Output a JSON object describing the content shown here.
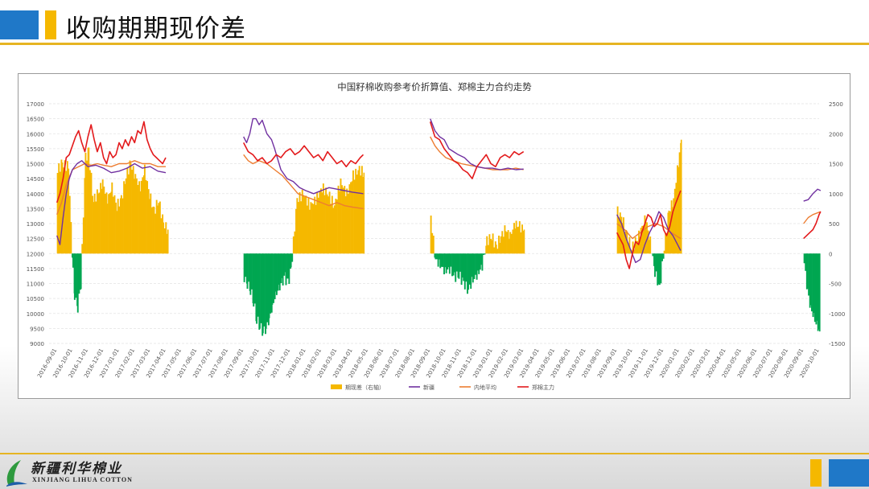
{
  "slide": {
    "title": "收购期期现价差",
    "company_cn": "新疆利华棉业",
    "company_en": "XINJIANG LIHUA COTTON",
    "colors": {
      "blue": "#1f78c8",
      "gold": "#f5b800",
      "rule": "#e6b422"
    }
  },
  "chart_data": {
    "type": "bar+line",
    "title": "中国籽棉收购参考价折算值、郑棉主力合约走势",
    "y_left": {
      "min": 9000,
      "max": 17000,
      "step": 500
    },
    "y_right": {
      "min": -1500,
      "max": 2500,
      "step": 500
    },
    "x_labels": [
      "2016-09-01",
      "2016-10-01",
      "2016-11-01",
      "2016-12-01",
      "2017-01-01",
      "2017-02-01",
      "2017-03-01",
      "2017-04-01",
      "2017-05-01",
      "2017-06-01",
      "2017-07-01",
      "2017-08-01",
      "2017-09-01",
      "2017-10-01",
      "2017-11-01",
      "2017-12-01",
      "2018-01-01",
      "2018-02-01",
      "2018-03-01",
      "2018-04-01",
      "2018-05-01",
      "2018-06-01",
      "2018-07-01",
      "2018-08-01",
      "2018-09-01",
      "2018-10-01",
      "2018-11-01",
      "2018-12-01",
      "2019-01-01",
      "2019-02-01",
      "2019-03-01",
      "2019-04-01",
      "2019-05-01",
      "2019-06-01",
      "2019-07-01",
      "2019-08-01",
      "2019-09-01",
      "2019-10-01",
      "2019-11-01",
      "2019-12-01",
      "2020-01-01",
      "2020-02-01",
      "2020-03-01",
      "2020-04-01",
      "2020-05-01",
      "2020-06-01",
      "2020-07-01",
      "2020-08-01",
      "2020-09-01",
      "2020-10-01"
    ],
    "legend": [
      {
        "name": "期现差（右轴）",
        "color": "#f5b800",
        "kind": "bar"
      },
      {
        "name": "新疆",
        "color": "#7030a0",
        "kind": "line"
      },
      {
        "name": "内地平均",
        "color": "#ed7d31",
        "kind": "line"
      },
      {
        "name": "郑棉主力",
        "color": "#e31a1c",
        "kind": "line"
      }
    ],
    "negative_bar_color": "#00a651",
    "basis_right_axis": [
      {
        "t": [
          0.0,
          0.3,
          0.7,
          1.0,
          1.1,
          1.3,
          1.5,
          1.8,
          2.0,
          2.3,
          2.6,
          2.9,
          3.2,
          3.5,
          3.8,
          4.1,
          4.4,
          4.7,
          5.0,
          5.3,
          5.6,
          5.9,
          6.2,
          6.5,
          6.8,
          7.1
        ],
        "v": [
          1400,
          1500,
          1450,
          -300,
          -700,
          -900,
          -500,
          1600,
          1700,
          900,
          1000,
          1200,
          900,
          1100,
          800,
          900,
          1300,
          1500,
          1300,
          1100,
          1400,
          1000,
          700,
          900,
          500,
          400
        ]
      },
      {
        "t": [
          12.0,
          12.2,
          12.4,
          12.6,
          12.8,
          13.0,
          13.2,
          13.4,
          13.6,
          13.8,
          14.0,
          14.2,
          14.4,
          14.6,
          14.8,
          15.0,
          15.4,
          15.8,
          16.2,
          16.6,
          17.0,
          17.4,
          17.8,
          18.2,
          18.6,
          19.0,
          19.4,
          19.7
        ],
        "v": [
          -400,
          -500,
          -600,
          -800,
          -1100,
          -1200,
          -1300,
          -1250,
          -1100,
          -900,
          -700,
          -600,
          -500,
          -400,
          -500,
          -300,
          900,
          1000,
          800,
          900,
          1100,
          1000,
          800,
          1200,
          1000,
          1300,
          1400,
          1350
        ]
      },
      {
        "t": [
          24.0,
          24.3,
          24.6,
          24.9,
          25.2,
          25.5,
          25.8,
          26.1,
          26.4,
          26.7,
          27.0,
          27.3,
          27.6,
          27.9,
          28.2,
          28.5,
          28.8,
          29.1,
          29.4,
          29.7,
          30.0
        ],
        "v": [
          600,
          -100,
          -200,
          -300,
          -250,
          -400,
          -350,
          -500,
          -600,
          -450,
          -350,
          -200,
          200,
          300,
          100,
          300,
          400,
          300,
          500,
          450,
          400
        ]
      },
      {
        "t": [
          36.0,
          36.3,
          36.6,
          36.9,
          37.2,
          37.5,
          37.8,
          38.1,
          38.4,
          38.7,
          39.0,
          39.3,
          39.6,
          39.9,
          40.1
        ],
        "v": [
          700,
          600,
          300,
          100,
          200,
          400,
          600,
          200,
          -300,
          -600,
          100,
          700,
          900,
          1500,
          1900
        ]
      },
      {
        "t": [
          48.0,
          48.2,
          48.4,
          48.6,
          48.8,
          49.0
        ],
        "v": [
          -150,
          -600,
          -900,
          -1050,
          -1200,
          -1300
        ]
      }
    ],
    "xinjiang_left_axis": [
      {
        "t": [
          0.0,
          0.2,
          0.4,
          0.6,
          0.8,
          1.0,
          1.3,
          1.6,
          2.0,
          2.5,
          3.0,
          3.5,
          4.0,
          4.5,
          5.0,
          5.5,
          6.0,
          6.5,
          7.0
        ],
        "v": [
          12600,
          12300,
          13200,
          14000,
          14500,
          14800,
          15000,
          15100,
          14900,
          14950,
          14850,
          14700,
          14750,
          14850,
          15000,
          14850,
          14900,
          14750,
          14700
        ]
      },
      {
        "t": [
          12.0,
          12.2,
          12.4,
          12.6,
          12.8,
          13.0,
          13.2,
          13.5,
          13.8,
          14.0,
          14.4,
          14.8,
          15.2,
          15.6,
          16.0,
          16.5,
          17.0,
          17.5,
          18.0,
          18.5,
          19.0,
          19.7
        ],
        "v": [
          15900,
          15700,
          16000,
          16500,
          16500,
          16300,
          16450,
          16000,
          15800,
          15500,
          14800,
          14500,
          14400,
          14200,
          14100,
          14000,
          14100,
          14200,
          14150,
          14100,
          14050,
          14000
        ]
      },
      {
        "t": [
          24.0,
          24.3,
          24.6,
          24.9,
          25.2,
          25.5,
          25.8,
          26.2,
          26.6,
          27.0,
          27.5,
          28.0,
          28.5,
          29.0,
          29.5,
          30.0
        ],
        "v": [
          16500,
          16100,
          15900,
          15800,
          15500,
          15400,
          15300,
          15200,
          15000,
          14900,
          14850,
          14850,
          14800,
          14850,
          14800,
          14820
        ]
      },
      {
        "t": [
          36.0,
          36.3,
          36.6,
          36.9,
          37.2,
          37.5,
          37.8,
          38.1,
          38.4,
          38.7,
          39.0,
          39.3,
          39.6,
          39.9,
          40.1
        ],
        "v": [
          13300,
          13000,
          12500,
          12100,
          11700,
          11800,
          12300,
          12700,
          13000,
          13400,
          13200,
          12800,
          12600,
          12300,
          12100
        ]
      },
      {
        "t": [
          48.0,
          48.3,
          48.6,
          48.9,
          49.1
        ],
        "v": [
          13750,
          13800,
          14000,
          14150,
          14100
        ]
      }
    ],
    "neidi_left_axis": [
      {
        "t": [
          0.0,
          0.3,
          0.6,
          1.0,
          1.4,
          1.8,
          2.2,
          2.6,
          3.0,
          3.5,
          4.0,
          4.5,
          5.0,
          5.5,
          6.0,
          6.5,
          7.0
        ],
        "v": [
          13300,
          13700,
          14300,
          14800,
          14900,
          15000,
          14950,
          15000,
          14950,
          14900,
          15000,
          15000,
          15100,
          15000,
          15000,
          14900,
          14900
        ]
      },
      {
        "t": [
          12.0,
          12.3,
          12.6,
          13.0,
          13.5,
          14.0,
          14.5,
          15.0,
          15.5,
          16.0,
          16.5,
          17.0,
          17.5,
          18.0,
          18.5,
          19.0,
          19.7
        ],
        "v": [
          15300,
          15100,
          15000,
          15100,
          15000,
          14800,
          14600,
          14300,
          14000,
          13900,
          13800,
          13700,
          13600,
          13700,
          13600,
          13550,
          13500
        ]
      },
      {
        "t": [
          24.0,
          24.3,
          24.6,
          25.0,
          25.5,
          26.0,
          26.5,
          27.0,
          27.5,
          28.0,
          28.5,
          29.0,
          29.5,
          30.0
        ],
        "v": [
          15900,
          15600,
          15400,
          15200,
          15100,
          15000,
          14950,
          14900,
          14850,
          14800,
          14800,
          14800,
          14850,
          14800
        ]
      },
      {
        "t": [
          36.0,
          36.5,
          37.0,
          37.5,
          38.0,
          38.5,
          39.0,
          39.5,
          40.1
        ],
        "v": [
          13000,
          12800,
          12500,
          12700,
          12900,
          13000,
          12900,
          12700,
          12500
        ]
      },
      {
        "t": [
          48.0,
          48.3,
          48.6,
          49.1
        ],
        "v": [
          13000,
          13200,
          13300,
          13400
        ]
      }
    ],
    "zhengmian_left_axis": [
      {
        "t": [
          0.0,
          0.2,
          0.4,
          0.6,
          0.8,
          1.0,
          1.2,
          1.4,
          1.6,
          1.8,
          2.0,
          2.2,
          2.4,
          2.6,
          2.8,
          3.0,
          3.2,
          3.4,
          3.6,
          3.8,
          4.0,
          4.2,
          4.4,
          4.6,
          4.8,
          5.0,
          5.2,
          5.4,
          5.6,
          5.8,
          6.0,
          6.2,
          6.4,
          6.6,
          6.8,
          7.0
        ],
        "v": [
          13700,
          14000,
          14500,
          15200,
          15300,
          15600,
          15900,
          16100,
          15700,
          15400,
          15900,
          16300,
          15800,
          15400,
          15700,
          15200,
          15000,
          15400,
          15200,
          15300,
          15700,
          15500,
          15800,
          15600,
          15900,
          15700,
          16100,
          16000,
          16400,
          15800,
          15500,
          15300,
          15200,
          15100,
          15000,
          15200
        ]
      },
      {
        "t": [
          12.0,
          12.3,
          12.6,
          12.9,
          13.2,
          13.5,
          13.8,
          14.1,
          14.4,
          14.7,
          15.0,
          15.3,
          15.6,
          15.9,
          16.2,
          16.5,
          16.8,
          17.1,
          17.4,
          17.7,
          18.0,
          18.3,
          18.6,
          18.9,
          19.2,
          19.5,
          19.7
        ],
        "v": [
          15700,
          15400,
          15300,
          15100,
          15200,
          15000,
          15100,
          15300,
          15200,
          15400,
          15500,
          15300,
          15400,
          15600,
          15400,
          15200,
          15300,
          15100,
          15400,
          15200,
          15000,
          15100,
          14900,
          15100,
          15000,
          15200,
          15300
        ]
      },
      {
        "t": [
          24.0,
          24.3,
          24.6,
          24.9,
          25.2,
          25.5,
          25.8,
          26.1,
          26.4,
          26.7,
          27.0,
          27.3,
          27.6,
          27.9,
          28.2,
          28.5,
          28.8,
          29.1,
          29.4,
          29.7,
          30.0
        ],
        "v": [
          16400,
          15900,
          15800,
          15500,
          15300,
          15100,
          15000,
          14800,
          14700,
          14500,
          14900,
          15100,
          15300,
          15000,
          14900,
          15200,
          15300,
          15200,
          15400,
          15300,
          15400
        ]
      },
      {
        "t": [
          36.0,
          36.2,
          36.4,
          36.6,
          36.8,
          37.0,
          37.2,
          37.4,
          37.6,
          37.8,
          38.0,
          38.2,
          38.4,
          38.6,
          38.8,
          39.0,
          39.2,
          39.4,
          39.6,
          39.8,
          40.1
        ],
        "v": [
          12700,
          12500,
          12300,
          11800,
          11500,
          12000,
          12400,
          12300,
          12700,
          13000,
          13300,
          13200,
          12900,
          13000,
          13300,
          12800,
          12600,
          12900,
          13400,
          13700,
          14100
        ]
      },
      {
        "t": [
          48.0,
          48.2,
          48.4,
          48.6,
          48.8,
          49.0,
          49.1
        ],
        "v": [
          12500,
          12600,
          12700,
          12800,
          13000,
          13300,
          13400
        ]
      }
    ]
  }
}
